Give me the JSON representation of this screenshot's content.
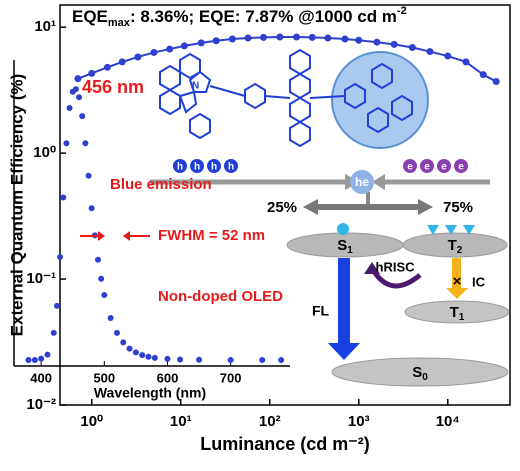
{
  "chart_data": [
    {
      "type": "line",
      "annotation_parts": [
        "EQE",
        "max",
        ": 8.36%; EQE: 7.87% @1000 cd m",
        "-2"
      ],
      "x_label": "Luminance (cd m⁻²)",
      "y_label": "External Quantum Efficiency (%)",
      "log_x": true,
      "log_y": true,
      "xlim": [
        0.44,
        50000
      ],
      "ylim": [
        0.01,
        15
      ],
      "xticks": [
        {
          "value": 1,
          "label": "10⁰"
        },
        {
          "value": 10,
          "label": "10¹"
        },
        {
          "value": 100,
          "label": "10²"
        },
        {
          "value": 1000,
          "label": "10³"
        },
        {
          "value": 10000,
          "label": "10⁴"
        }
      ],
      "yticks": [
        {
          "value": 0.01,
          "label": "10⁻²"
        },
        {
          "value": 0.1,
          "label": "10⁻¹"
        },
        {
          "value": 1,
          "label": "10⁰"
        },
        {
          "value": 10,
          "label": "10¹"
        }
      ],
      "series": [
        {
          "name": "EQE",
          "color": "#2f3fd0",
          "x": [
            0.7,
            1,
            1.5,
            2.2,
            3.3,
            5,
            7.5,
            11,
            17,
            25,
            38,
            57,
            85,
            130,
            200,
            300,
            450,
            700,
            1000,
            1600,
            2500,
            4000,
            6300,
            10000,
            16000,
            25000,
            35000
          ],
          "values": [
            3.9,
            4.3,
            4.8,
            5.3,
            5.8,
            6.3,
            6.7,
            7.1,
            7.5,
            7.8,
            8.05,
            8.2,
            8.3,
            8.36,
            8.35,
            8.3,
            8.2,
            8.05,
            7.87,
            7.6,
            7.3,
            6.9,
            6.4,
            5.9,
            5.3,
            4.2,
            3.7
          ]
        }
      ]
    },
    {
      "type": "scatter",
      "x_label": "Wavelength (nm)",
      "annotations": [
        "456 nm",
        "FWHM = 52 nm",
        "Non-doped OLED"
      ],
      "xlim": [
        357,
        794
      ],
      "ylim": [
        0,
        1.1
      ],
      "xticks": [
        400,
        500,
        600,
        700
      ],
      "series": [
        {
          "name": "EL",
          "color": "#2f3fd0",
          "x": [
            380,
            390,
            400,
            410,
            420,
            425,
            430,
            435,
            440,
            445,
            450,
            455,
            460,
            465,
            470,
            475,
            480,
            485,
            490,
            495,
            500,
            510,
            520,
            530,
            540,
            550,
            560,
            570,
            580,
            600,
            620,
            650,
            700,
            750,
            780
          ],
          "values": [
            0,
            0,
            0.005,
            0.02,
            0.1,
            0.2,
            0.38,
            0.6,
            0.8,
            0.93,
            0.99,
            1,
            0.97,
            0.9,
            0.8,
            0.68,
            0.56,
            0.46,
            0.37,
            0.3,
            0.24,
            0.155,
            0.1,
            0.065,
            0.042,
            0.028,
            0.018,
            0.012,
            0.008,
            0.004,
            0.002,
            0.001,
            0,
            0,
            0
          ]
        }
      ]
    }
  ],
  "diagram": {
    "blue_emission": "Blue emission",
    "holes": [
      "h",
      "h",
      "h",
      "h"
    ],
    "electrons": [
      "e",
      "e",
      "e",
      "e"
    ],
    "exciton": "he",
    "singlet_ratio": "25%",
    "triplet_ratio": "75%",
    "s1": [
      "S",
      "1"
    ],
    "t2": [
      "T",
      "2"
    ],
    "t1": [
      "T",
      "1"
    ],
    "s0": [
      "S",
      "0"
    ],
    "hrisc": "hRISC",
    "ic": "IC",
    "fl": "FL"
  }
}
